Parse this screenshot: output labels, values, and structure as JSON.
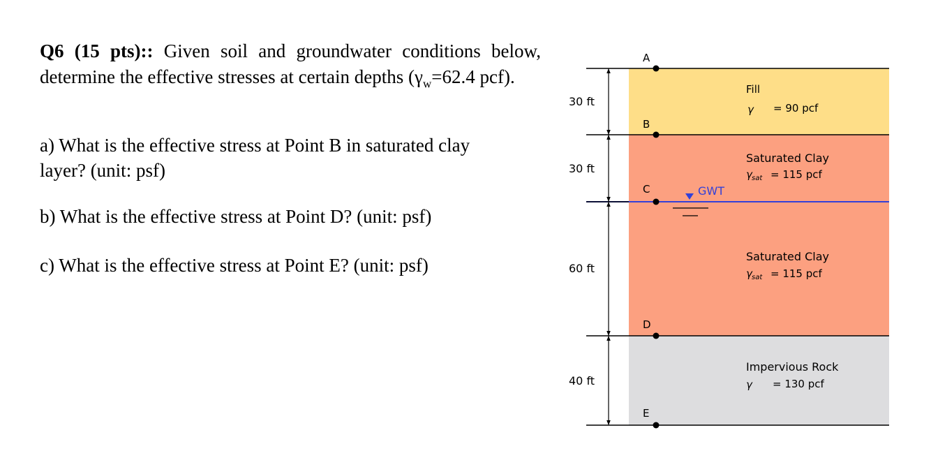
{
  "question": {
    "heading": "Q6 (15 pts)::",
    "intro": " Given soil and groundwater conditions below, determine the effective stresses at certain depths (",
    "gamma_symbol": "γ",
    "gamma_subscript": "w",
    "gamma_value": "=62.4 pcf).",
    "part_a": "a) What is the effective stress at Point B in saturated clay layer? (unit: psf)",
    "part_b": "b) What is the effective stress at Point D? (unit: psf)",
    "part_c": "c) What is the effective stress at Point E? (unit: psf)"
  },
  "diagram": {
    "dimensions": [
      "30 ft",
      "30 ft",
      "60 ft",
      "40 ft"
    ],
    "points": [
      "A",
      "B",
      "C",
      "D",
      "E"
    ],
    "gwt_label": "GWT",
    "layers": [
      {
        "name": "Fill",
        "gamma_symbol": "γ",
        "gamma_sub": "",
        "gamma_value": "= 90 pcf",
        "color": "#FEDE88"
      },
      {
        "name": "Saturated Clay",
        "gamma_symbol": "γ",
        "gamma_sub": "sat",
        "gamma_value": "= 115 pcf",
        "color": "#FCA080"
      },
      {
        "name": "Saturated Clay",
        "gamma_symbol": "γ",
        "gamma_sub": "sat",
        "gamma_value": "= 115 pcf",
        "color": "#FCA080"
      },
      {
        "name": "Impervious Rock",
        "gamma_symbol": "γ",
        "gamma_sub": "",
        "gamma_value": "= 130 pcf",
        "color": "#DDDDDF"
      }
    ],
    "colors": {
      "gwt_line": "#3340D8",
      "boundary": "#000000"
    }
  }
}
